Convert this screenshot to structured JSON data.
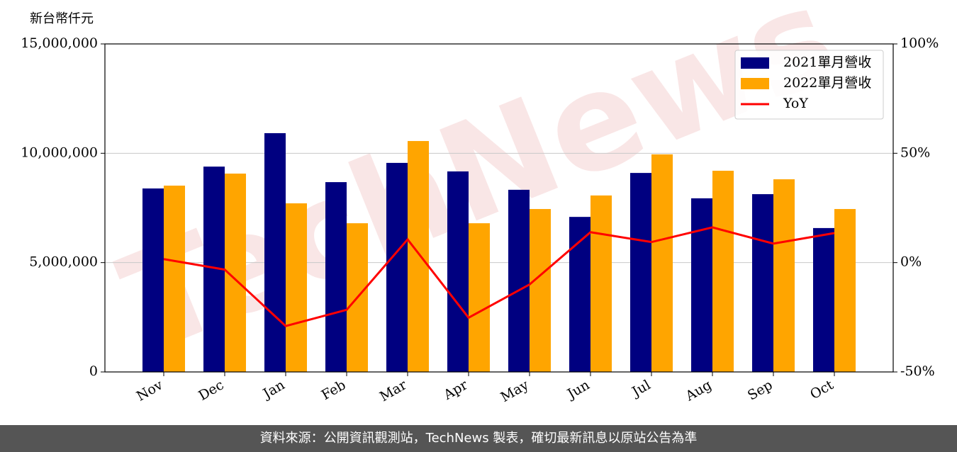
{
  "chart_data": {
    "type": "bar-line",
    "y_label": "新台幣仟元",
    "watermark": "TechNews",
    "categories": [
      "Nov",
      "Dec",
      "Jan",
      "Feb",
      "Mar",
      "Apr",
      "May",
      "Jun",
      "Jul",
      "Aug",
      "Sep",
      "Oct"
    ],
    "series": [
      {
        "name": "2021單月營收",
        "color": "#000080",
        "type": "bar",
        "values": [
          8390000,
          9390000,
          10920000,
          8680000,
          9560000,
          9170000,
          8330000,
          7090000,
          9100000,
          7940000,
          8130000,
          6580000
        ]
      },
      {
        "name": "2022單月營收",
        "color": "#ffa500",
        "type": "bar",
        "values": [
          8520000,
          9070000,
          7710000,
          6800000,
          10560000,
          6800000,
          7450000,
          8070000,
          9950000,
          9200000,
          8810000,
          7450000
        ]
      },
      {
        "name": "YoY",
        "color": "#ff0000",
        "type": "line",
        "axis": "y2",
        "values": [
          1.6,
          -3.2,
          -29,
          -21.6,
          10.6,
          -25.2,
          -10,
          13.9,
          9.4,
          16.1,
          8.7,
          13.5
        ]
      }
    ],
    "ylim": [
      0,
      15000000
    ],
    "yticks": [
      0,
      {
        "value": 5000000,
        "label": "5,000,000"
      },
      {
        "value": 10000000,
        "label": "10,000,000"
      },
      {
        "value": 15000000,
        "label": "15,000,000"
      }
    ],
    "y2lim": [
      -50,
      100
    ],
    "y2ticks": [
      {
        "value": -50,
        "label": "-50%"
      },
      {
        "value": 0,
        "label": "0%"
      },
      {
        "value": 50,
        "label": "50%"
      },
      {
        "value": 100,
        "label": "100%"
      }
    ],
    "grid": true,
    "legend": "upper right",
    "footer": "資料來源：公開資訊觀測站，TechNews 製表，確切最新訊息以原站公告為準"
  }
}
